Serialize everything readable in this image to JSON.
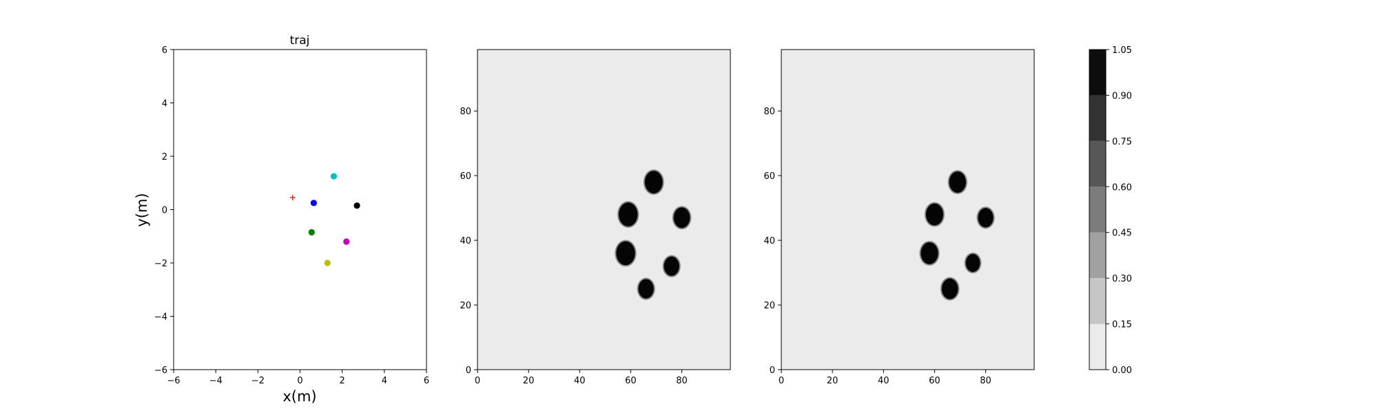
{
  "chart_data": [
    {
      "type": "scatter",
      "title": "traj",
      "xlabel": "x(m)",
      "ylabel": "y(m)",
      "xlim": [
        -6,
        6
      ],
      "ylim": [
        -6,
        6
      ],
      "xticks": [
        -6,
        -4,
        -2,
        0,
        2,
        4,
        6
      ],
      "yticks": [
        -6,
        -4,
        -2,
        0,
        2,
        4,
        6
      ],
      "grid": false,
      "series": [
        {
          "marker": "plus",
          "color": "#ff0000",
          "points": [
            [
              -0.35,
              0.45
            ]
          ]
        },
        {
          "marker": "dot",
          "color": "#00bfbf",
          "points": [
            [
              1.6,
              1.25
            ]
          ]
        },
        {
          "marker": "dot",
          "color": "#0000ff",
          "points": [
            [
              0.65,
              0.25
            ]
          ]
        },
        {
          "marker": "dot",
          "color": "#000000",
          "points": [
            [
              2.7,
              0.15
            ]
          ]
        },
        {
          "marker": "dot",
          "color": "#008000",
          "points": [
            [
              0.55,
              -0.85
            ]
          ]
        },
        {
          "marker": "dot",
          "color": "#bf00bf",
          "points": [
            [
              2.2,
              -1.2
            ]
          ]
        },
        {
          "marker": "dot",
          "color": "#bfbf00",
          "points": [
            [
              1.3,
              -2.0
            ]
          ]
        }
      ]
    },
    {
      "type": "heatmap",
      "xlim": [
        0,
        99
      ],
      "ylim": [
        0,
        99
      ],
      "xticks": [
        0,
        20,
        40,
        60,
        80
      ],
      "yticks": [
        0,
        20,
        40,
        60,
        80
      ],
      "background_value": 0.05,
      "blobs": [
        {
          "x": 69,
          "y": 58,
          "radius": 3.5,
          "value": 1.0
        },
        {
          "x": 59,
          "y": 48,
          "radius": 3.7,
          "value": 1.0
        },
        {
          "x": 80,
          "y": 47,
          "radius": 3.2,
          "value": 1.0
        },
        {
          "x": 58,
          "y": 36,
          "radius": 3.7,
          "value": 1.0
        },
        {
          "x": 76,
          "y": 32,
          "radius": 3.0,
          "value": 1.0
        },
        {
          "x": 66,
          "y": 25,
          "radius": 3.0,
          "value": 1.0
        }
      ]
    },
    {
      "type": "heatmap",
      "xlim": [
        0,
        99
      ],
      "ylim": [
        0,
        99
      ],
      "xticks": [
        0,
        20,
        40,
        60,
        80
      ],
      "yticks": [
        0,
        20,
        40,
        60,
        80
      ],
      "background_value": 0.05,
      "blobs": [
        {
          "x": 69,
          "y": 58,
          "radius": 3.3,
          "value": 1.0
        },
        {
          "x": 60,
          "y": 48,
          "radius": 3.4,
          "value": 1.0
        },
        {
          "x": 80,
          "y": 47,
          "radius": 3.0,
          "value": 1.0
        },
        {
          "x": 58,
          "y": 36,
          "radius": 3.4,
          "value": 1.0
        },
        {
          "x": 75,
          "y": 33,
          "radius": 2.8,
          "value": 1.0
        },
        {
          "x": 66,
          "y": 25,
          "radius": 3.2,
          "value": 1.0
        }
      ]
    }
  ],
  "colorbar": {
    "levels": [
      0.0,
      0.15,
      0.3,
      0.45,
      0.6,
      0.75,
      0.9,
      1.05
    ],
    "tick_labels": [
      "0.00",
      "0.15",
      "0.30",
      "0.45",
      "0.60",
      "0.75",
      "0.90",
      "1.05"
    ],
    "colors": [
      "#ebebeb",
      "#c6c6c6",
      "#a1a1a1",
      "#7c7c7c",
      "#575757",
      "#323232",
      "#0d0d0d"
    ]
  }
}
